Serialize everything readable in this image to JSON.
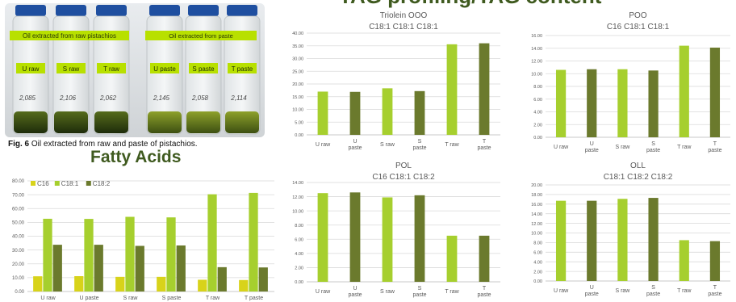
{
  "header": {
    "top_title": "TAG profiling/TAG content"
  },
  "figure": {
    "fig_label": "Fig. 6",
    "caption": " Oil extracted from raw and paste of pistachios.",
    "label_raw": "Oil extracted from raw pistachios",
    "label_paste": "Oil extracted from paste",
    "vials": [
      "U raw",
      "S raw",
      "T raw",
      "U paste",
      "S paste",
      "T paste"
    ],
    "vial_notes": [
      "2,085",
      "2,106",
      "2,062",
      "2,145",
      "2,058",
      "2,114"
    ]
  },
  "fatty_acids_title": "Fatty Acids",
  "colors": {
    "light": "#a6cf2e",
    "dark": "#6b7a2d",
    "yellow": "#d8d31a"
  },
  "chart_data": [
    {
      "id": "fatty",
      "type": "bar",
      "title": "",
      "categories": [
        "U raw",
        "U paste",
        "S raw",
        "S paste",
        "T raw",
        "T paste"
      ],
      "series": [
        {
          "name": "C16",
          "color": "#d8d31a",
          "values": [
            11.0,
            11.1,
            10.6,
            10.6,
            8.5,
            8.3
          ]
        },
        {
          "name": "C18:1",
          "color": "#a6cf2e",
          "values": [
            52.6,
            52.5,
            54.0,
            53.6,
            70.3,
            71.3
          ]
        },
        {
          "name": "C18:2",
          "color": "#6b7a2d",
          "values": [
            33.8,
            33.8,
            33.0,
            33.3,
            17.6,
            17.4
          ]
        }
      ],
      "ylim": [
        0,
        80
      ],
      "ticks": [
        "0.00",
        "10.00",
        "20.00",
        "30.00",
        "40.00",
        "50.00",
        "60.00",
        "70.00",
        "80.00"
      ],
      "legend": "top-left",
      "grid": true
    },
    {
      "id": "ooo",
      "type": "bar",
      "title": [
        "Triolein OOO",
        "C18:1 C18:1 C18:1"
      ],
      "categories": [
        "U raw",
        "U paste",
        "S raw",
        "S paste",
        "T raw",
        "T paste"
      ],
      "values": [
        17.0,
        16.9,
        18.3,
        17.2,
        35.6,
        36.0
      ],
      "colors": [
        "#a6cf2e",
        "#6b7a2d",
        "#a6cf2e",
        "#6b7a2d",
        "#a6cf2e",
        "#6b7a2d"
      ],
      "ylim": [
        0,
        40
      ],
      "ticks": [
        "0.00",
        "5.00",
        "10.00",
        "15.00",
        "20.00",
        "25.00",
        "30.00",
        "35.00",
        "40.00"
      ],
      "grid": true
    },
    {
      "id": "poo",
      "type": "bar",
      "title": [
        "POO",
        "C16 C18:1 C18:1"
      ],
      "categories": [
        "U raw",
        "U paste",
        "S raw",
        "S paste",
        "T raw",
        "T paste"
      ],
      "values": [
        10.6,
        10.7,
        10.7,
        10.5,
        14.4,
        14.1
      ],
      "colors": [
        "#a6cf2e",
        "#6b7a2d",
        "#a6cf2e",
        "#6b7a2d",
        "#a6cf2e",
        "#6b7a2d"
      ],
      "ylim": [
        0,
        16
      ],
      "ticks": [
        "0.00",
        "2.00",
        "4.00",
        "6.00",
        "8.00",
        "10.00",
        "12.00",
        "14.00",
        "16.00"
      ],
      "grid": true
    },
    {
      "id": "pol",
      "type": "bar",
      "title": [
        "POL",
        "C16 C18:1 C18:2"
      ],
      "categories": [
        "U raw",
        "U paste",
        "S raw",
        "S paste",
        "T raw",
        "T paste"
      ],
      "values": [
        12.5,
        12.6,
        11.9,
        12.2,
        6.5,
        6.5
      ],
      "colors": [
        "#a6cf2e",
        "#6b7a2d",
        "#a6cf2e",
        "#6b7a2d",
        "#a6cf2e",
        "#6b7a2d"
      ],
      "ylim": [
        0,
        14
      ],
      "ticks": [
        "0.00",
        "2.00",
        "4.00",
        "6.00",
        "8.00",
        "10.00",
        "12.00",
        "14.00"
      ],
      "grid": true
    },
    {
      "id": "oll",
      "type": "bar",
      "title": [
        "OLL",
        "C18:1 C18:2 C18:2"
      ],
      "categories": [
        "U raw",
        "U paste",
        "S raw",
        "S paste",
        "T raw",
        "T paste"
      ],
      "values": [
        16.7,
        16.7,
        17.1,
        17.3,
        8.5,
        8.3
      ],
      "colors": [
        "#a6cf2e",
        "#6b7a2d",
        "#a6cf2e",
        "#6b7a2d",
        "#a6cf2e",
        "#6b7a2d"
      ],
      "ylim": [
        0,
        20
      ],
      "ticks": [
        "0.00",
        "2.00",
        "4.00",
        "6.00",
        "8.00",
        "10.00",
        "12.00",
        "14.00",
        "16.00",
        "18.00",
        "20.00"
      ],
      "grid": true
    }
  ]
}
